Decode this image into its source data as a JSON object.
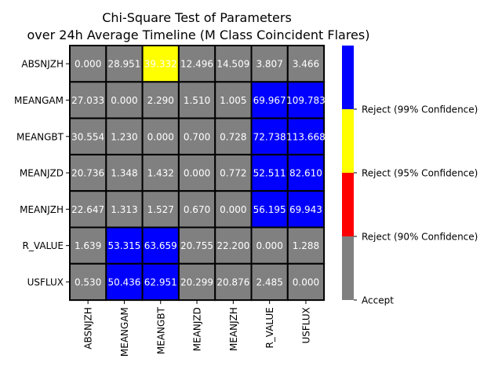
{
  "chart_data": {
    "type": "heatmap",
    "title": "Chi-Square Test of Parameters",
    "subtitle": "over 24h Average Timeline (M Class Coincident Flares)",
    "xlabel": "",
    "ylabel": "",
    "row_labels": [
      "ABSNJZH",
      "MEANGAM",
      "MEANGBT",
      "MEANJZD",
      "MEANJZH",
      "R_VALUE",
      "USFLUX"
    ],
    "col_labels": [
      "ABSNJZH",
      "MEANGAM",
      "MEANGBT",
      "MEANJZD",
      "MEANJZH",
      "R_VALUE",
      "USFLUX"
    ],
    "values": [
      [
        0.0,
        28.951,
        39.332,
        12.496,
        14.509,
        3.807,
        3.466
      ],
      [
        27.033,
        0.0,
        2.29,
        1.51,
        1.005,
        69.967,
        109.783
      ],
      [
        30.554,
        1.23,
        0.0,
        0.7,
        0.728,
        72.738,
        113.668
      ],
      [
        20.736,
        1.348,
        1.432,
        0.0,
        0.772,
        52.511,
        82.61
      ],
      [
        22.647,
        1.313,
        1.527,
        0.67,
        0.0,
        56.195,
        69.943
      ],
      [
        1.639,
        53.315,
        63.659,
        20.755,
        22.2,
        0.0,
        1.288
      ],
      [
        0.53,
        50.436,
        62.951,
        20.299,
        20.876,
        2.485,
        0.0
      ]
    ],
    "value_labels": [
      [
        "0.000",
        "28.951",
        "39.332",
        "12.496",
        "14.509",
        "3.807",
        "3.466"
      ],
      [
        "27.033",
        "0.000",
        "2.290",
        "1.510",
        "1.005",
        "69.967",
        "109.783"
      ],
      [
        "30.554",
        "1.230",
        "0.000",
        "0.700",
        "0.728",
        "72.738",
        "113.668"
      ],
      [
        "20.736",
        "1.348",
        "1.432",
        "0.000",
        "0.772",
        "52.511",
        "82.610"
      ],
      [
        "22.647",
        "1.313",
        "1.527",
        "0.670",
        "0.000",
        "56.195",
        "69.943"
      ],
      [
        "1.639",
        "53.315",
        "63.659",
        "20.755",
        "22.200",
        "0.000",
        "1.288"
      ],
      [
        "0.530",
        "50.436",
        "62.951",
        "20.299",
        "20.876",
        "2.485",
        "0.000"
      ]
    ],
    "categories": [
      [
        "accept",
        "accept",
        "reject-95",
        "accept",
        "accept",
        "accept",
        "accept"
      ],
      [
        "accept",
        "accept",
        "accept",
        "accept",
        "accept",
        "reject-99",
        "reject-99"
      ],
      [
        "accept",
        "accept",
        "accept",
        "accept",
        "accept",
        "reject-99",
        "reject-99"
      ],
      [
        "accept",
        "accept",
        "accept",
        "accept",
        "accept",
        "reject-99",
        "reject-99"
      ],
      [
        "accept",
        "accept",
        "accept",
        "accept",
        "accept",
        "reject-99",
        "reject-99"
      ],
      [
        "accept",
        "reject-99",
        "reject-99",
        "accept",
        "accept",
        "accept",
        "accept"
      ],
      [
        "accept",
        "reject-99",
        "reject-99",
        "accept",
        "accept",
        "accept",
        "accept"
      ]
    ],
    "colorbar": [
      {
        "key": "accept",
        "label": "Accept",
        "color": "#808080"
      },
      {
        "key": "reject-90",
        "label": "Reject (90% Confidence)",
        "color": "#ff0000"
      },
      {
        "key": "reject-95",
        "label": "Reject (95% Confidence)",
        "color": "#ffff00"
      },
      {
        "key": "reject-99",
        "label": "Reject (99% Confidence)",
        "color": "#0000ff"
      }
    ],
    "cell_border_color": "#000000",
    "legend_position": "right"
  }
}
